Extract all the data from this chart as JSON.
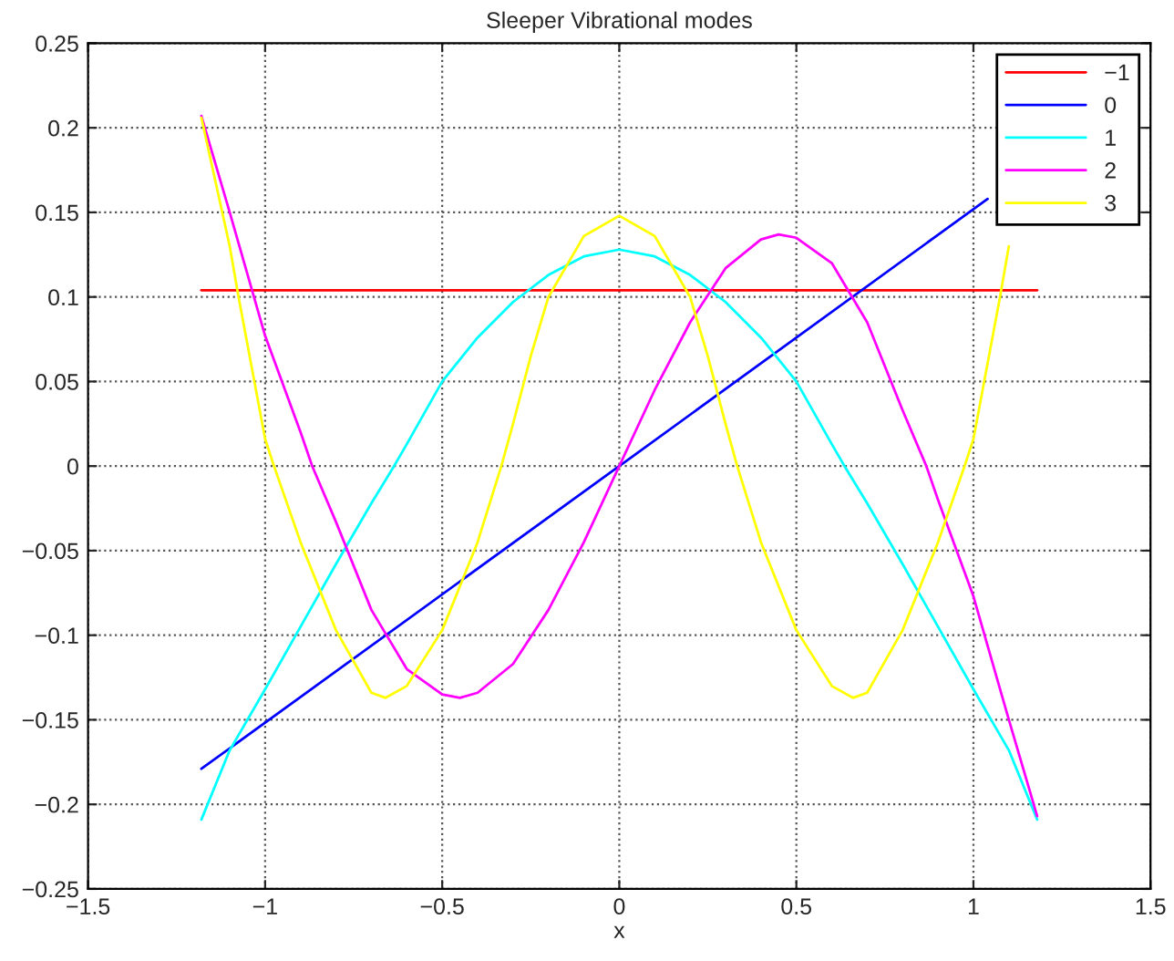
{
  "chart_data": {
    "type": "line",
    "title": "Sleeper Vibrational modes",
    "xlabel": "x",
    "xlim": [
      -1.5,
      1.5
    ],
    "xticks": [
      {
        "value": -1.5,
        "label": "−1.5"
      },
      {
        "value": -1,
        "label": "−1"
      },
      {
        "value": -0.5,
        "label": "−0.5"
      },
      0,
      0.5,
      1,
      1.5
    ],
    "ylim": [
      -0.25,
      0.25
    ],
    "yticks": [
      {
        "value": -0.25,
        "label": "−0.25"
      },
      {
        "value": -0.2,
        "label": "−0.2"
      },
      {
        "value": -0.15,
        "label": "−0.15"
      },
      {
        "value": -0.1,
        "label": "−0.1"
      },
      {
        "value": -0.05,
        "label": "−0.05"
      },
      0,
      0.05,
      0.1,
      0.15,
      0.2,
      0.25
    ],
    "grid": true,
    "legend": "top right",
    "line_style": "solid",
    "marker": "none",
    "series": [
      {
        "name": "−1",
        "color": "#ff0000",
        "x": [
          -1.18,
          1.18
        ],
        "values": [
          0.104,
          0.104
        ]
      },
      {
        "name": "0",
        "color": "#0000ff",
        "x": [
          -1.18,
          0,
          1.04
        ],
        "values": [
          -0.179,
          0,
          0.158
        ]
      },
      {
        "name": "1",
        "color": "#00ffff",
        "x": [
          -1.18,
          -1.1,
          -1.0,
          -0.9,
          -0.8,
          -0.7,
          -0.636,
          -0.6,
          -0.5,
          -0.4,
          -0.3,
          -0.2,
          -0.1,
          0,
          0.1,
          0.2,
          0.3,
          0.4,
          0.5,
          0.6,
          0.636,
          0.7,
          0.8,
          0.9,
          1.0,
          1.1,
          1.18
        ],
        "values": [
          -0.209,
          -0.168,
          -0.132,
          -0.095,
          -0.058,
          -0.022,
          0,
          0.013,
          0.05,
          0.076,
          0.097,
          0.113,
          0.124,
          0.128,
          0.124,
          0.113,
          0.097,
          0.076,
          0.05,
          0.013,
          0,
          -0.022,
          -0.058,
          -0.095,
          -0.132,
          -0.168,
          -0.209
        ]
      },
      {
        "name": "2",
        "color": "#ff00ff",
        "x": [
          -1.18,
          -1.1,
          -1.0,
          -0.9,
          -0.867,
          -0.8,
          -0.7,
          -0.6,
          -0.5,
          -0.45,
          -0.4,
          -0.3,
          -0.2,
          -0.1,
          0,
          0.1,
          0.2,
          0.3,
          0.4,
          0.45,
          0.5,
          0.6,
          0.7,
          0.8,
          0.867,
          0.9,
          1.0,
          1.1,
          1.18
        ],
        "values": [
          0.207,
          0.15,
          0.077,
          0.02,
          0,
          -0.033,
          -0.085,
          -0.12,
          -0.135,
          -0.137,
          -0.134,
          -0.117,
          -0.085,
          -0.045,
          0,
          0.045,
          0.085,
          0.117,
          0.134,
          0.137,
          0.135,
          0.12,
          0.085,
          0.033,
          0,
          -0.02,
          -0.077,
          -0.15,
          -0.207
        ]
      },
      {
        "name": "3",
        "color": "#ffff00",
        "x": [
          -1.18,
          -1.1,
          -1.075,
          -1.0,
          -0.975,
          -0.9,
          -0.8,
          -0.7,
          -0.66,
          -0.6,
          -0.5,
          -0.4,
          -0.333,
          -0.3,
          -0.25,
          -0.2,
          -0.1,
          0,
          0.1,
          0.2,
          0.25,
          0.3,
          0.333,
          0.4,
          0.5,
          0.6,
          0.66,
          0.7,
          0.8,
          0.9,
          0.975,
          1.0,
          1.075,
          1.1
        ],
        "values": [
          0.206,
          0.13,
          0.1,
          0.016,
          0,
          -0.045,
          -0.097,
          -0.134,
          -0.137,
          -0.13,
          -0.097,
          -0.045,
          0,
          0.025,
          0.065,
          0.1,
          0.136,
          0.148,
          0.136,
          0.1,
          0.065,
          0.025,
          0,
          -0.045,
          -0.097,
          -0.13,
          -0.137,
          -0.134,
          -0.097,
          -0.045,
          0,
          0.016,
          0.1,
          0.13
        ]
      }
    ]
  }
}
